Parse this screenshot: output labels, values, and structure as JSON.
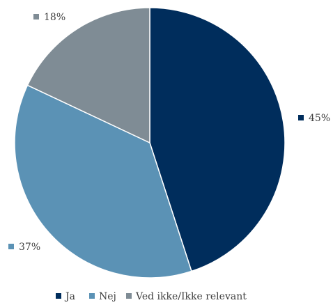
{
  "chart_data": {
    "type": "pie",
    "categories": [
      "Ja",
      "Nej",
      "Ved ikke/Ikke relevant"
    ],
    "values": [
      45,
      37,
      18
    ],
    "data_labels": [
      "45%",
      "37%",
      "18%"
    ],
    "colors": [
      "#002d5c",
      "#5b92b5",
      "#7f8c95"
    ],
    "start_angle_deg": 0,
    "direction": "clockwise",
    "legend": {
      "placement": "bottom",
      "items": [
        "Ja",
        "Nej",
        "Ved ikke/Ikke relevant"
      ]
    }
  }
}
